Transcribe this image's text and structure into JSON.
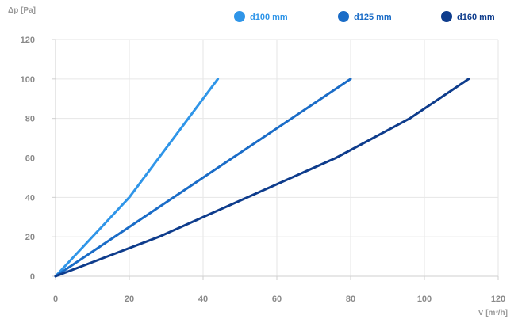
{
  "chart_data": {
    "type": "line",
    "xlabel": "V [m³/h]",
    "ylabel": "Δp [Pa]",
    "xlim": [
      0,
      120
    ],
    "ylim": [
      0,
      120
    ],
    "x_ticks": [
      "0",
      "20",
      "40",
      "60",
      "80",
      "100",
      "120"
    ],
    "y_ticks": [
      "0",
      "20",
      "40",
      "60",
      "80",
      "100",
      "120"
    ],
    "grid": true,
    "legend_position": "top-right",
    "series": [
      {
        "name": "d100 mm",
        "color": "#2f95e8",
        "points": [
          [
            0,
            0
          ],
          [
            20,
            40
          ],
          [
            44,
            100
          ]
        ]
      },
      {
        "name": "d125 mm",
        "color": "#1a6cc7",
        "points": [
          [
            0,
            0
          ],
          [
            80,
            100
          ]
        ]
      },
      {
        "name": "d160 mm",
        "color": "#0e3c8c",
        "points": [
          [
            0,
            0
          ],
          [
            28,
            20
          ],
          [
            76,
            60
          ],
          [
            96,
            80
          ],
          [
            112,
            100
          ]
        ]
      }
    ]
  }
}
